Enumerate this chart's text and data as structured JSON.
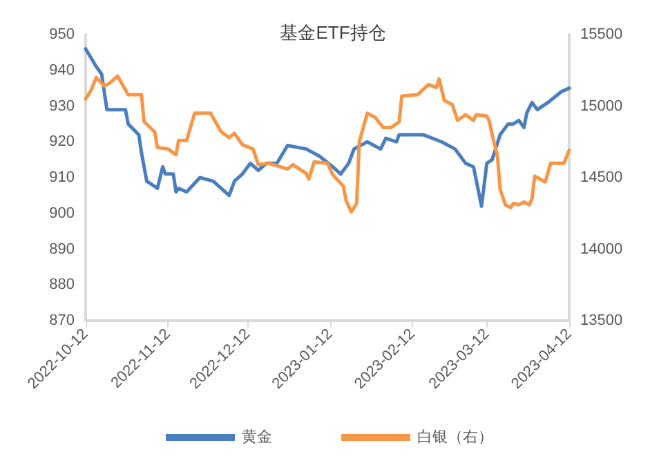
{
  "chart_data": {
    "type": "line",
    "title": "基金ETF持仓",
    "marker": "none",
    "line_style": "solid",
    "grid": false,
    "legend": "bottom",
    "xlim": [
      "2022-10-12",
      "2023-04-12"
    ],
    "xticks": [
      "2022-10-12",
      "2022-11-12",
      "2022-12-12",
      "2023-01-12",
      "2023-02-12",
      "2023-03-12",
      "2023-04-12"
    ],
    "ylim": [
      870,
      950
    ],
    "yticks": [
      870,
      880,
      890,
      900,
      910,
      920,
      930,
      940,
      950
    ],
    "y2lim": [
      13500,
      15500
    ],
    "y2ticks": [
      13500,
      14000,
      14500,
      15000,
      15500
    ],
    "series": [
      {
        "name": "黄金",
        "color": "#4a7ebf",
        "x": [
          "2022-10-12",
          "2022-10-16",
          "2022-10-18",
          "2022-10-20",
          "2022-10-27",
          "2022-10-28",
          "2022-11-01",
          "2022-11-02",
          "2022-11-04",
          "2022-11-08",
          "2022-11-10",
          "2022-11-11",
          "2022-11-14",
          "2022-11-15",
          "2022-11-16",
          "2022-11-19",
          "2022-11-24",
          "2022-11-29",
          "2022-12-05",
          "2022-12-07",
          "2022-12-10",
          "2022-12-13",
          "2022-12-16",
          "2022-12-19",
          "2022-12-23",
          "2022-12-27",
          "2023-01-03",
          "2023-01-08",
          "2023-01-13",
          "2023-01-16",
          "2023-01-19",
          "2023-01-21",
          "2023-01-26",
          "2023-01-31",
          "2023-02-02",
          "2023-02-06",
          "2023-02-07",
          "2023-02-16",
          "2023-02-23",
          "2023-02-28",
          "2023-03-04",
          "2023-03-07",
          "2023-03-10",
          "2023-03-12",
          "2023-03-14",
          "2023-03-17",
          "2023-03-20",
          "2023-03-22",
          "2023-03-24",
          "2023-03-26",
          "2023-03-27",
          "2023-03-29",
          "2023-03-31",
          "2023-04-04",
          "2023-04-09",
          "2023-04-12"
        ],
        "values": [
          946,
          941,
          939,
          929,
          929,
          925,
          922,
          917,
          909,
          907,
          913,
          911,
          911,
          906,
          907,
          906,
          910,
          909,
          905,
          909,
          911,
          914,
          912,
          914,
          914,
          919,
          918,
          916,
          913,
          911,
          914,
          918,
          920,
          918,
          921,
          920,
          922,
          922,
          920,
          918,
          914,
          913,
          902,
          914,
          915,
          922,
          925,
          925,
          926,
          924,
          928,
          931,
          929,
          931,
          934,
          935
        ]
      },
      {
        "name": "白银（右）",
        "color": "#f79646",
        "axis": "y2",
        "x": [
          "2022-10-12",
          "2022-10-14",
          "2022-10-16",
          "2022-10-19",
          "2022-10-21",
          "2022-10-24",
          "2022-10-28",
          "2022-11-02",
          "2022-11-03",
          "2022-11-07",
          "2022-11-08",
          "2022-11-12",
          "2022-11-15",
          "2022-11-16",
          "2022-11-19",
          "2022-11-22",
          "2022-11-28",
          "2022-12-02",
          "2022-12-05",
          "2022-12-07",
          "2022-12-10",
          "2022-12-14",
          "2022-12-16",
          "2022-12-20",
          "2022-12-27",
          "2022-12-29",
          "2023-01-03",
          "2023-01-04",
          "2023-01-06",
          "2023-01-11",
          "2023-01-13",
          "2023-01-17",
          "2023-01-18",
          "2023-01-20",
          "2023-01-22",
          "2023-01-23",
          "2023-01-26",
          "2023-01-29",
          "2023-02-01",
          "2023-02-04",
          "2023-02-07",
          "2023-02-08",
          "2023-02-14",
          "2023-02-18",
          "2023-02-21",
          "2023-02-22",
          "2023-02-24",
          "2023-02-27",
          "2023-03-01",
          "2023-03-04",
          "2023-03-07",
          "2023-03-08",
          "2023-03-12",
          "2023-03-13",
          "2023-03-14",
          "2023-03-16",
          "2023-03-17",
          "2023-03-19",
          "2023-03-21",
          "2023-03-22",
          "2023-03-24",
          "2023-03-26",
          "2023-03-28",
          "2023-03-29",
          "2023-03-30",
          "2023-04-03",
          "2023-04-05",
          "2023-04-10",
          "2023-04-12"
        ],
        "values": [
          15050,
          15110,
          15200,
          15140,
          15160,
          15210,
          15080,
          15080,
          14890,
          14820,
          14710,
          14700,
          14660,
          14760,
          14760,
          14950,
          14950,
          14820,
          14780,
          14810,
          14730,
          14700,
          14590,
          14600,
          14560,
          14590,
          14530,
          14490,
          14610,
          14600,
          14520,
          14440,
          14340,
          14260,
          14320,
          14750,
          14950,
          14920,
          14850,
          14850,
          14890,
          15070,
          15080,
          15150,
          15130,
          15190,
          15040,
          15010,
          14900,
          14940,
          14900,
          14940,
          14930,
          14890,
          14800,
          14650,
          14420,
          14310,
          14290,
          14320,
          14310,
          14330,
          14310,
          14350,
          14510,
          14470,
          14600,
          14600,
          14690
        ]
      }
    ]
  }
}
